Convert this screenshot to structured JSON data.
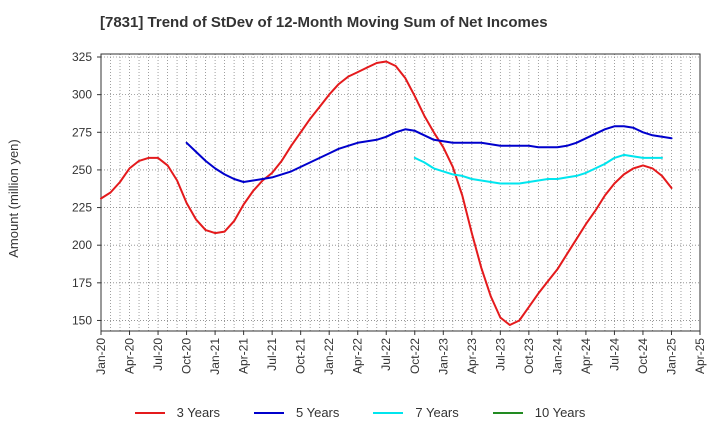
{
  "chart_data": {
    "type": "line",
    "title": "[7831]  Trend of StDev of 12-Month Moving Sum of Net Incomes",
    "xlabel": "",
    "ylabel": "Amount (million yen)",
    "ylim": [
      143,
      327
    ],
    "yticks": [
      150,
      175,
      200,
      225,
      250,
      275,
      300,
      325
    ],
    "xlim": [
      "2020-01",
      "2025-04"
    ],
    "xticks": [
      "Jan-20",
      "Apr-20",
      "Jul-20",
      "Oct-20",
      "Jan-21",
      "Apr-21",
      "Jul-21",
      "Oct-21",
      "Jan-22",
      "Apr-22",
      "Jul-22",
      "Oct-22",
      "Jan-23",
      "Apr-23",
      "Jul-23",
      "Oct-23",
      "Jan-24",
      "Apr-24",
      "Jul-24",
      "Oct-24",
      "Jan-25",
      "Apr-25"
    ],
    "grid": true,
    "legend_position": "bottom",
    "series": [
      {
        "name": "3 Years",
        "color": "#e41a1c",
        "start": "2020-01",
        "values": [
          231,
          235,
          242,
          251,
          256,
          258,
          258,
          253,
          243,
          228,
          217,
          210,
          208,
          209,
          216,
          227,
          236,
          243,
          248,
          256,
          266,
          275,
          284,
          292,
          300,
          307,
          312,
          315,
          318,
          321,
          322,
          319,
          311,
          299,
          286,
          275,
          265,
          252,
          233,
          208,
          185,
          166,
          152,
          147,
          150,
          159,
          168,
          176,
          184,
          194,
          204,
          214,
          223,
          233,
          241,
          247,
          251,
          253,
          251,
          246,
          238
        ]
      },
      {
        "name": "5 Years",
        "color": "#0000cc",
        "start": "2020-10",
        "values": [
          268,
          262,
          256,
          251,
          247,
          244,
          242,
          243,
          244,
          245,
          247,
          249,
          252,
          255,
          258,
          261,
          264,
          266,
          268,
          269,
          270,
          272,
          275,
          277,
          276,
          273,
          270,
          269,
          268,
          268,
          268,
          268,
          267,
          266,
          266,
          266,
          266,
          265,
          265,
          265,
          266,
          268,
          271,
          274,
          277,
          279,
          279,
          278,
          275,
          273,
          272,
          271
        ]
      },
      {
        "name": "7 Years",
        "color": "#00e5ee",
        "start": "2022-10",
        "values": [
          258,
          255,
          251,
          249,
          247,
          246,
          244,
          243,
          242,
          241,
          241,
          241,
          242,
          243,
          244,
          244,
          245,
          246,
          248,
          251,
          254,
          258,
          260,
          259,
          258,
          258,
          258
        ]
      },
      {
        "name": "10 Years",
        "color": "#228b22",
        "start": "2025-04",
        "values": []
      }
    ]
  }
}
